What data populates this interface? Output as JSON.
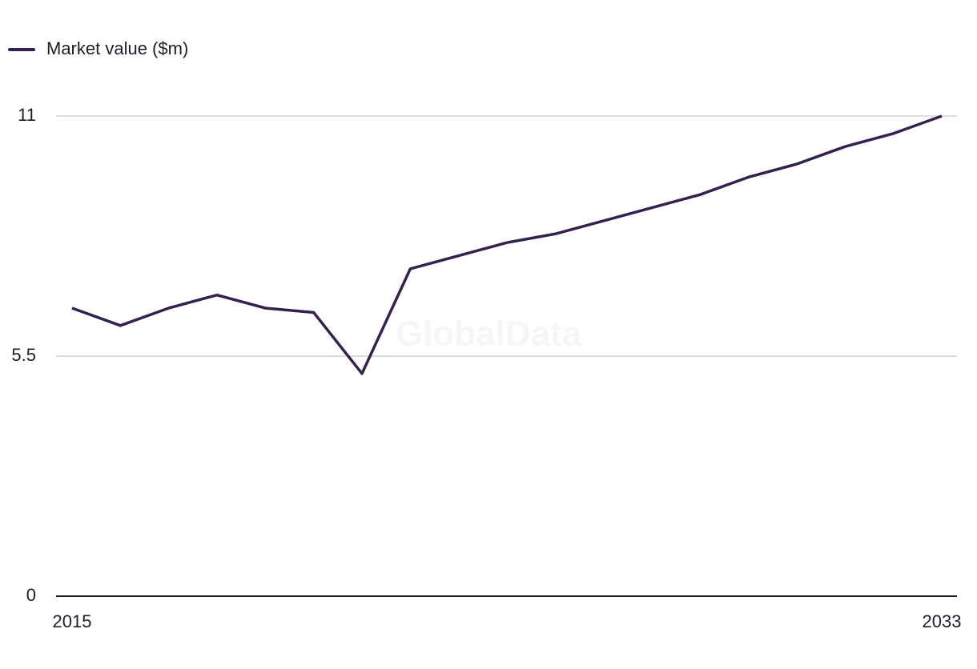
{
  "chart_data": {
    "type": "line",
    "watermark": "GlobalData",
    "x": [
      2015,
      2016,
      2017,
      2018,
      2019,
      2020,
      2021,
      2022,
      2023,
      2024,
      2025,
      2026,
      2027,
      2028,
      2029,
      2030,
      2031,
      2032,
      2033
    ],
    "series": [
      {
        "name": "Market value ($m)",
        "color": "#34214f",
        "values": [
          6.6,
          6.2,
          6.6,
          6.9,
          6.6,
          6.5,
          5.1,
          7.5,
          7.8,
          8.1,
          8.3,
          8.6,
          8.9,
          9.2,
          9.6,
          9.9,
          10.3,
          10.6,
          11.0
        ]
      }
    ],
    "xlim": [
      2015,
      2033
    ],
    "xticks": [
      2015,
      2033
    ],
    "ylim": [
      0,
      11
    ],
    "yticks": [
      0,
      5.5,
      11
    ],
    "grid": true,
    "legend": "top-left"
  }
}
